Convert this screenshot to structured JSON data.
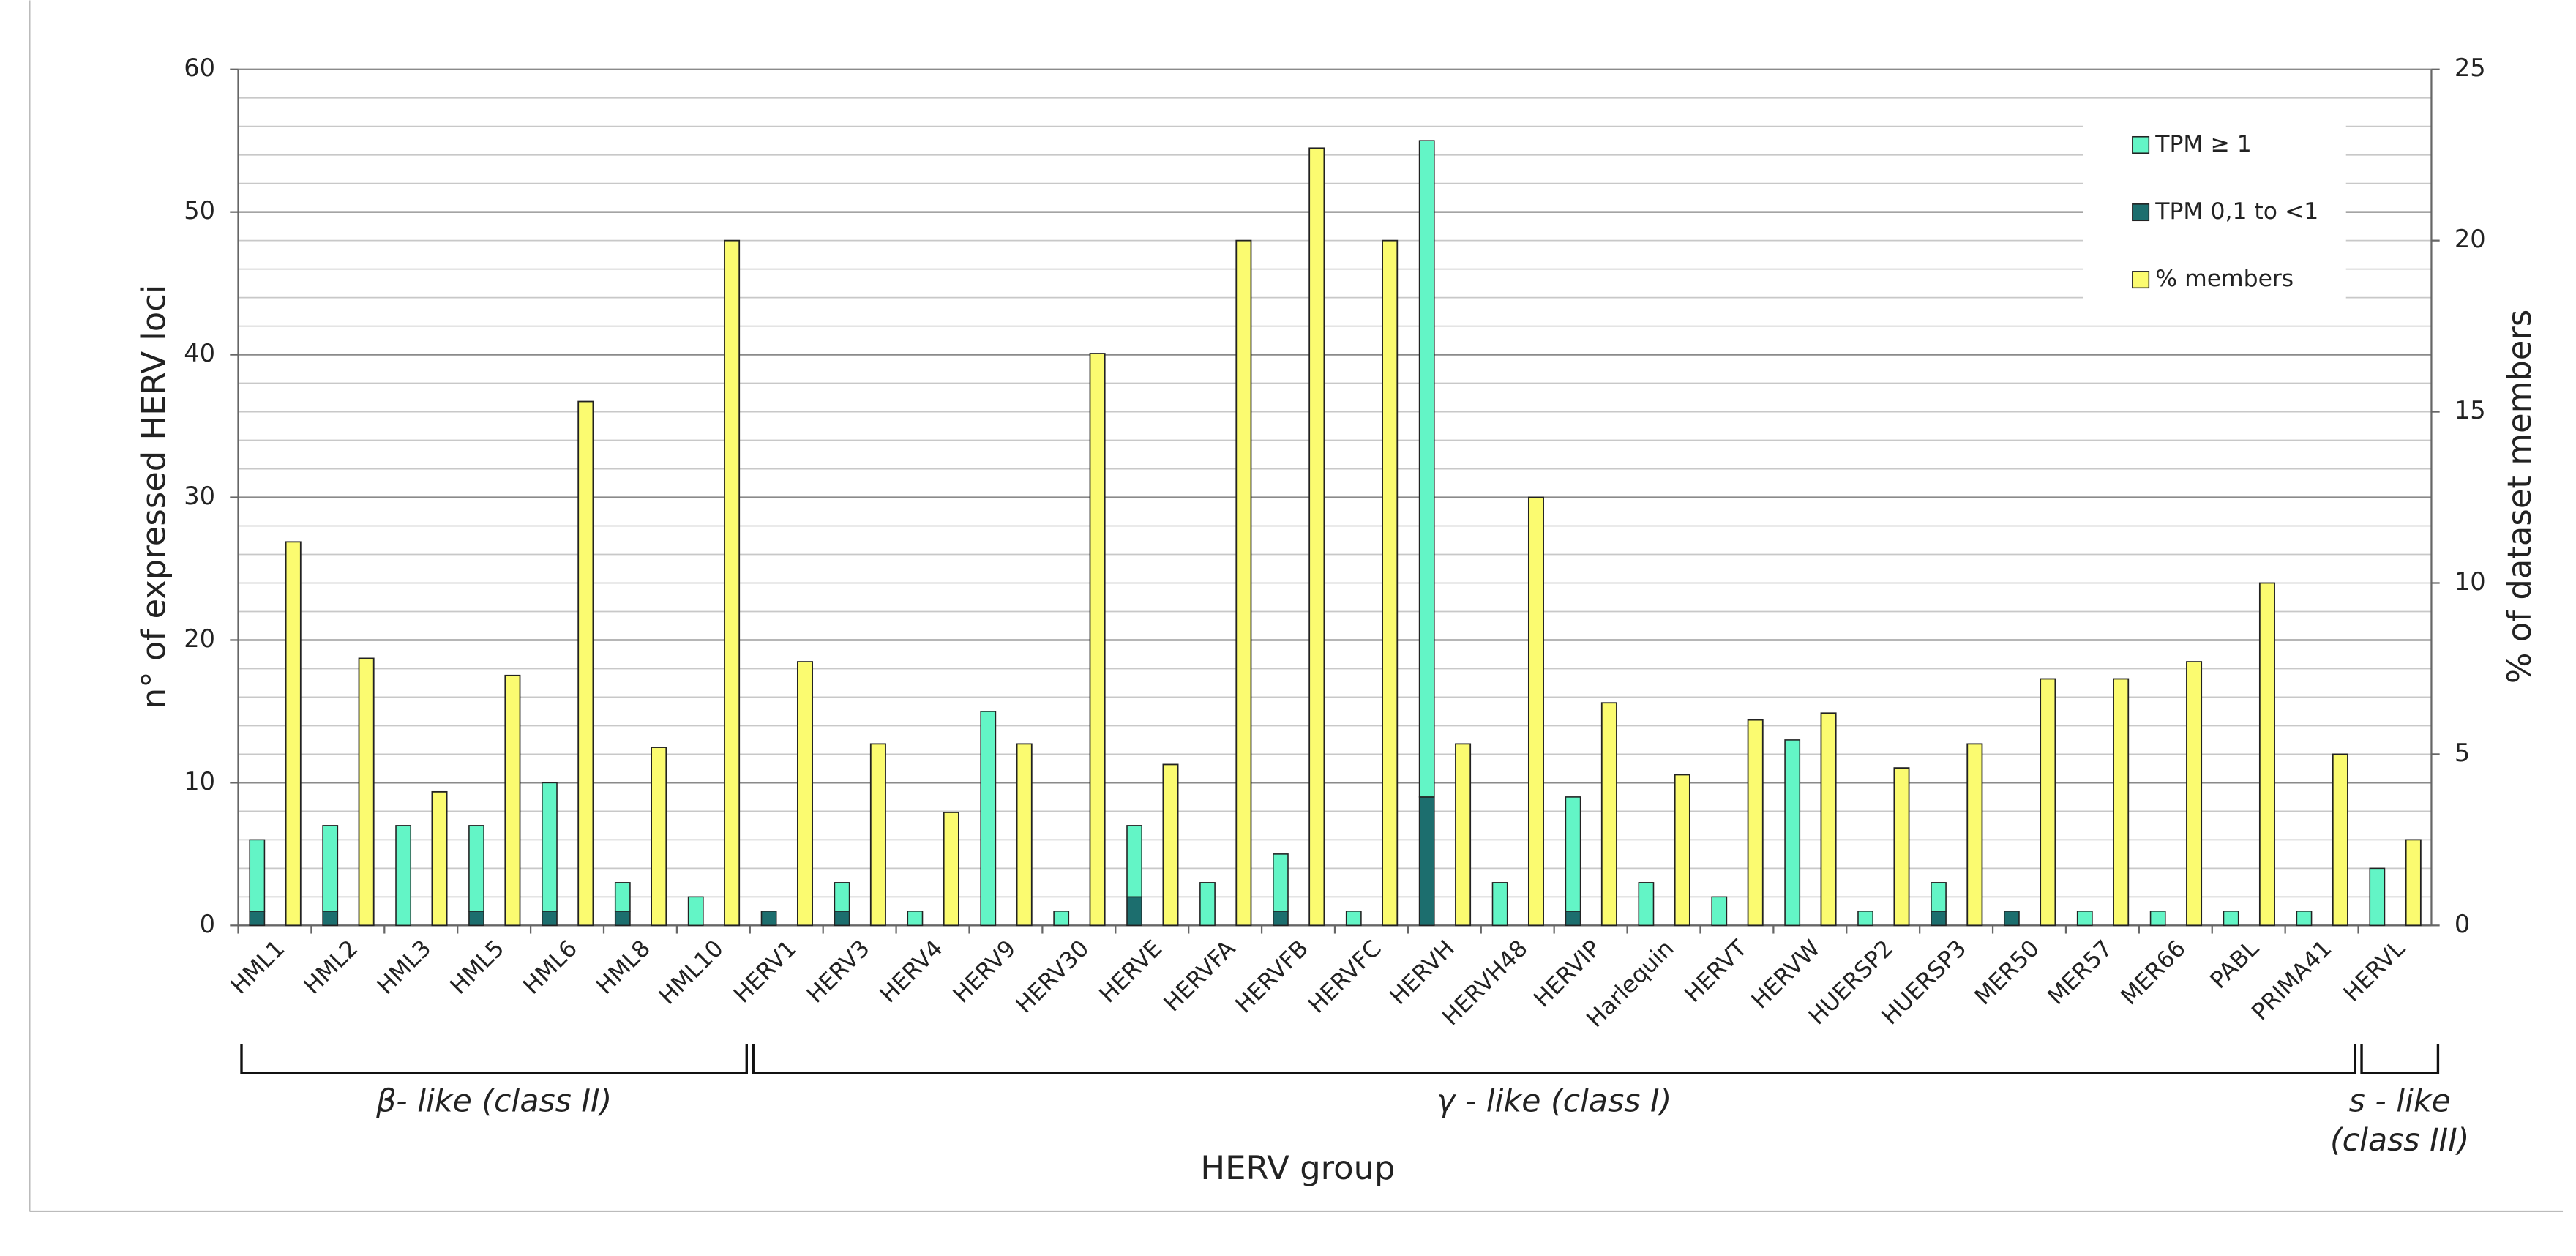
{
  "chart_data": {
    "type": "bar",
    "x_label": "HERV group",
    "y_label": "n° of expressed HERV loci",
    "y2_label": "% of dataset members",
    "categories": [
      "HML1",
      "HML2",
      "HML3",
      "HML5",
      "HML6",
      "HML8",
      "HML10",
      "HERV1",
      "HERV3",
      "HERV4",
      "HERV9",
      "HERV30",
      "HERVE",
      "HERVFA",
      "HERVFB",
      "HERVFC",
      "HERVH",
      "HERVH48",
      "HERVIP",
      "Harlequin",
      "HERVT",
      "HERVW",
      "HUERSP2",
      "HUERSP3",
      "MER50",
      "MER57",
      "MER66",
      "PABL",
      "PRIMA41",
      "HERVL"
    ],
    "series": [
      {
        "name": "TPM ≥ 1",
        "color": "#63f5c6",
        "stack": "loci",
        "values": [
          5,
          6,
          7,
          6,
          9,
          2,
          2,
          0,
          2,
          1,
          15,
          1,
          5,
          3,
          4,
          1,
          46,
          3,
          8,
          3,
          2,
          13,
          1,
          2,
          0,
          1,
          1,
          1,
          1,
          4
        ]
      },
      {
        "name": "TPM 0,1 to <1",
        "color": "#1c6e6e",
        "stack": "loci",
        "values": [
          1,
          1,
          0,
          1,
          1,
          1,
          0,
          1,
          1,
          0,
          0,
          0,
          2,
          0,
          1,
          0,
          9,
          0,
          1,
          0,
          0,
          0,
          0,
          1,
          1,
          0,
          0,
          0,
          0,
          0
        ]
      },
      {
        "name": "% members",
        "color": "#fbfb70",
        "axis": "y2",
        "values": [
          11.2,
          7.8,
          3.9,
          7.3,
          15.3,
          5.2,
          20,
          7.7,
          5.3,
          3.3,
          5.3,
          16.7,
          4.7,
          20,
          22.7,
          20,
          5.3,
          12.5,
          6.5,
          4.4,
          6.0,
          6.2,
          4.6,
          5.3,
          7.2,
          7.2,
          7.7,
          10,
          5,
          2.5
        ]
      }
    ],
    "groups": [
      {
        "label": [
          "β- like (class II)"
        ],
        "start": 0,
        "end": 6
      },
      {
        "label": [
          "γ - like (class I)"
        ],
        "start": 7,
        "end": 28
      },
      {
        "label": [
          "s - like",
          "(class III)"
        ],
        "start": 29,
        "end": 29
      }
    ],
    "ylim": [
      0,
      60
    ],
    "yticks": [
      0,
      10,
      20,
      30,
      40,
      50,
      60
    ],
    "y2lim": [
      0,
      25
    ],
    "y2ticks": [
      0,
      5,
      10,
      15,
      20,
      25
    ],
    "grid": true,
    "minor_grid_step": 2,
    "legend": "upper right"
  }
}
